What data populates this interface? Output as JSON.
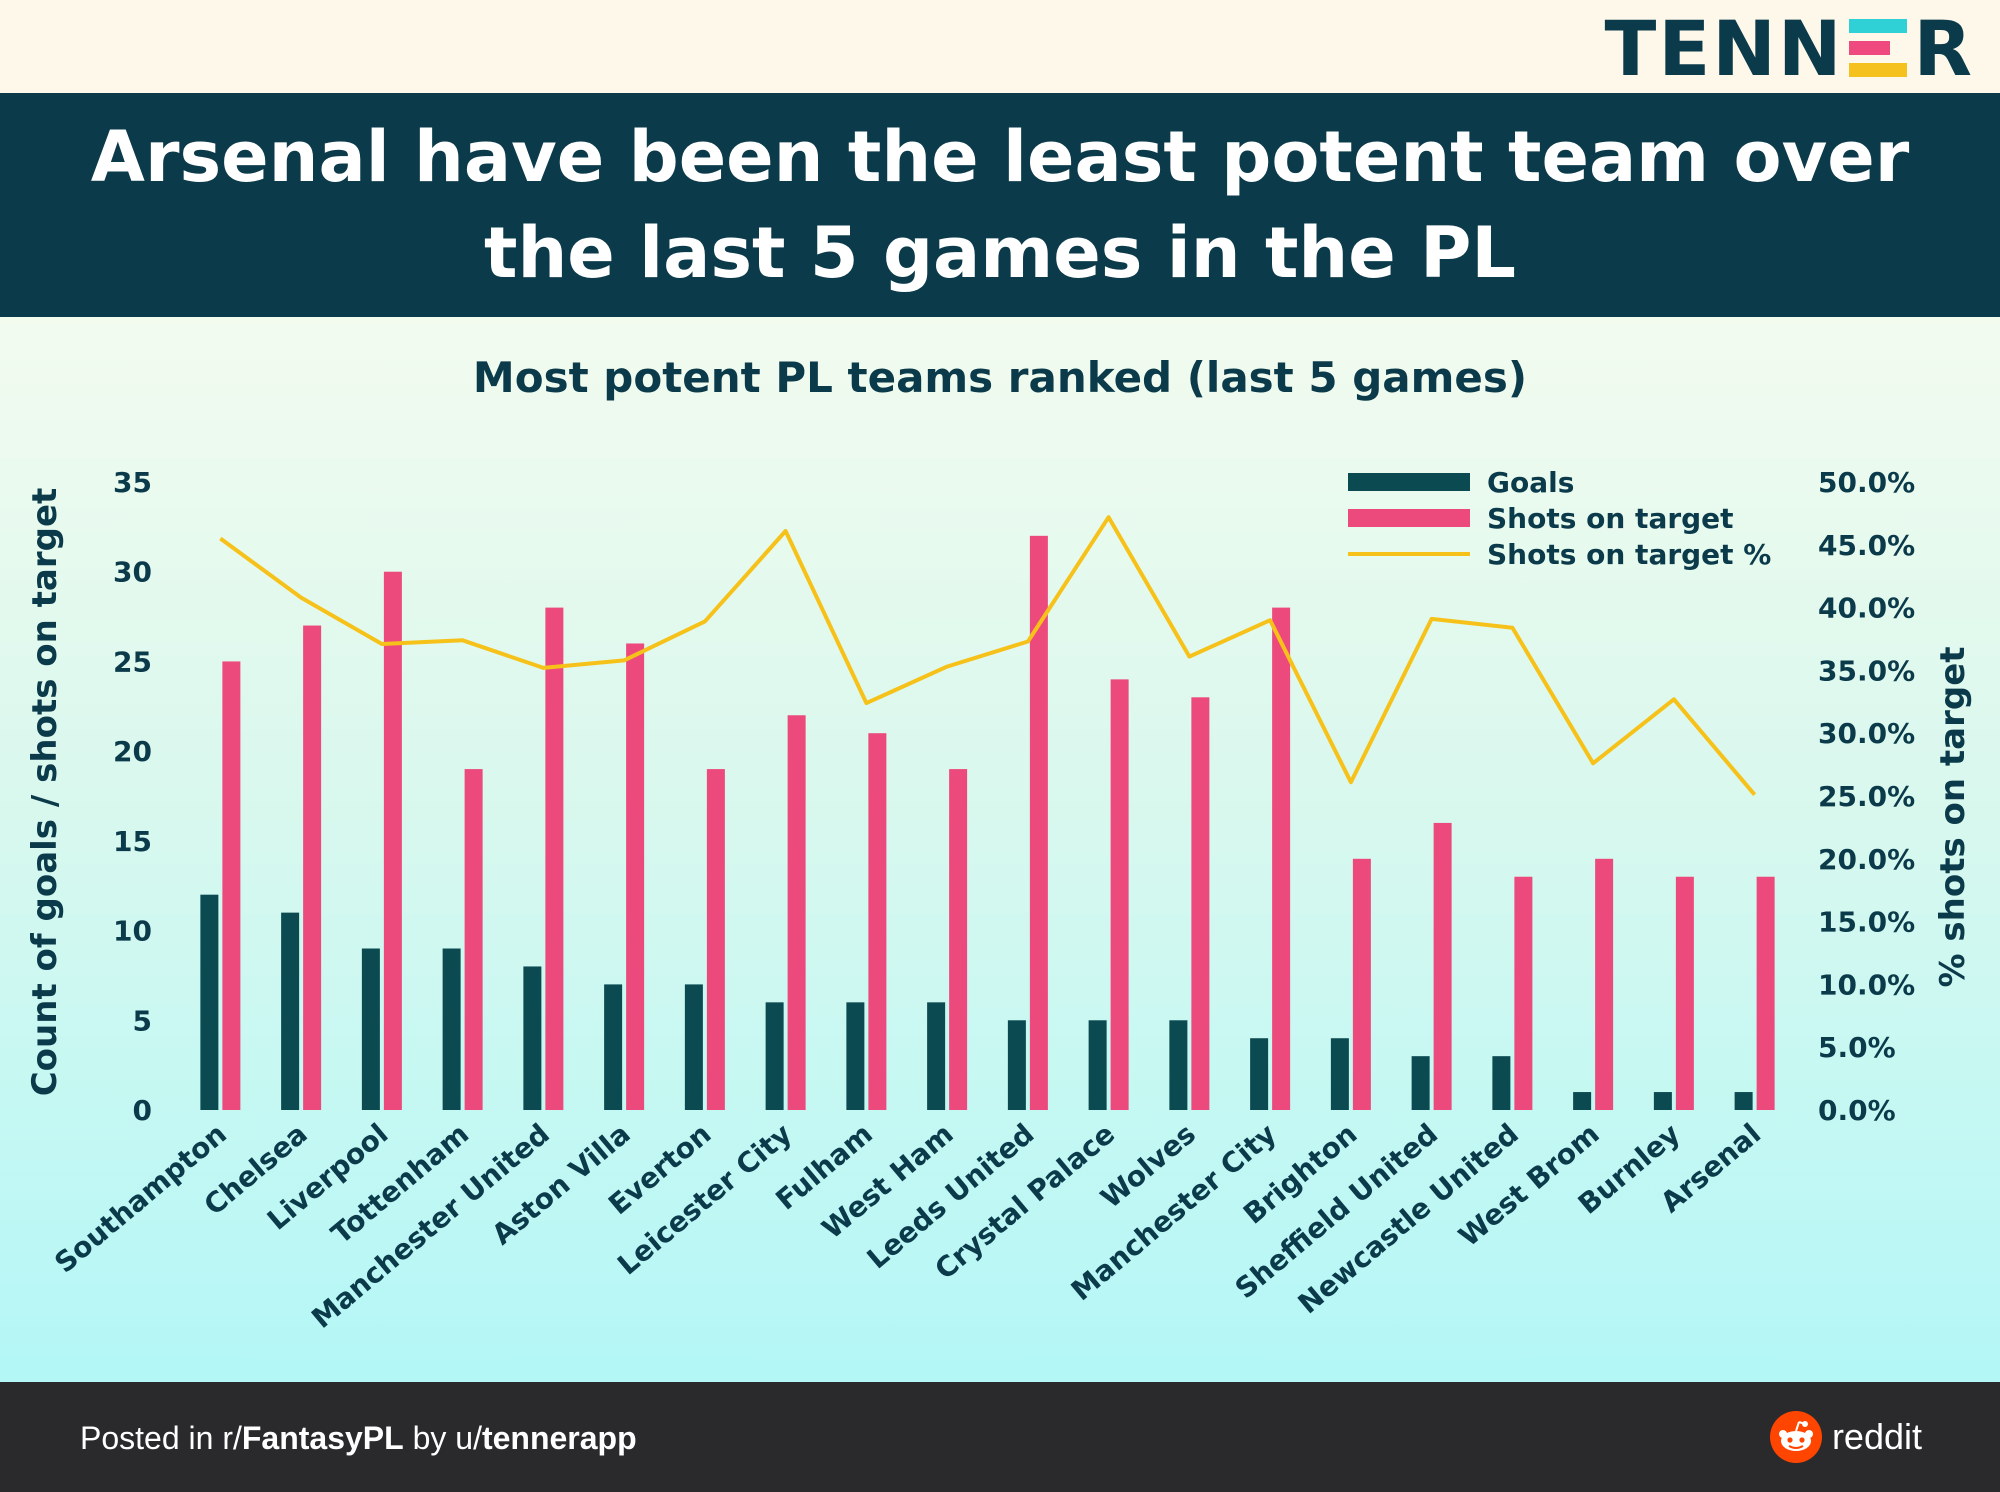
{
  "brand": {
    "logo_left": "TENN",
    "logo_right": "R",
    "logo_colors": [
      "#2fd0d6",
      "#ee4a7f",
      "#f4c11f"
    ]
  },
  "headline": "Arsenal have been the least potent team over the last 5 games in the PL",
  "footer": {
    "prefix": "Posted in r/",
    "subreddit": "FantasyPL",
    "by": " by u/",
    "user": "tennerapp",
    "platform": "reddit"
  },
  "colors": {
    "goals": "#0b4a50",
    "shots": "#ec4a7d",
    "pct": "#f6c21a",
    "text": "#0b3a4a"
  },
  "chart_data": {
    "type": "bar",
    "title": "Most potent PL teams ranked (last 5 games)",
    "ylabel": "Count of goals / shots on target",
    "y2label": "% shots on target",
    "ylim": [
      0,
      35
    ],
    "yticks": [
      0,
      5,
      10,
      15,
      20,
      25,
      30,
      35
    ],
    "y2lim": [
      0,
      50
    ],
    "y2ticks": [
      "0.0%",
      "5.0%",
      "10.0%",
      "15.0%",
      "20.0%",
      "25.0%",
      "30.0%",
      "35.0%",
      "40.0%",
      "45.0%",
      "50.0%"
    ],
    "legend_position": "top-right",
    "categories": [
      "Southampton",
      "Chelsea",
      "Liverpool",
      "Tottenham",
      "Manchester United",
      "Aston Villa",
      "Everton",
      "Leicester City",
      "Fulham",
      "West Ham",
      "Leeds United",
      "Crystal Palace",
      "Wolves",
      "Manchester City",
      "Brighton",
      "Sheffield United",
      "Newcastle United",
      "West Brom",
      "Burnley",
      "Arsenal"
    ],
    "series": [
      {
        "name": "Goals",
        "type": "bar",
        "axis": "left",
        "values": [
          12,
          11,
          9,
          9,
          8,
          7,
          7,
          6,
          6,
          6,
          5,
          5,
          5,
          4,
          4,
          3,
          3,
          1,
          1,
          1
        ]
      },
      {
        "name": "Shots on target",
        "type": "bar",
        "axis": "left",
        "values": [
          25,
          27,
          30,
          19,
          28,
          26,
          19,
          22,
          21,
          19,
          32,
          24,
          23,
          28,
          14,
          16,
          13,
          14,
          13,
          13
        ]
      },
      {
        "name": "Shots on target %",
        "type": "line",
        "axis": "right",
        "values": [
          45.5,
          40.8,
          37.1,
          37.4,
          35.2,
          35.8,
          38.9,
          46.1,
          32.4,
          35.3,
          37.3,
          47.2,
          36.1,
          39.0,
          26.1,
          39.1,
          38.4,
          27.6,
          32.7,
          25.1
        ]
      }
    ]
  }
}
